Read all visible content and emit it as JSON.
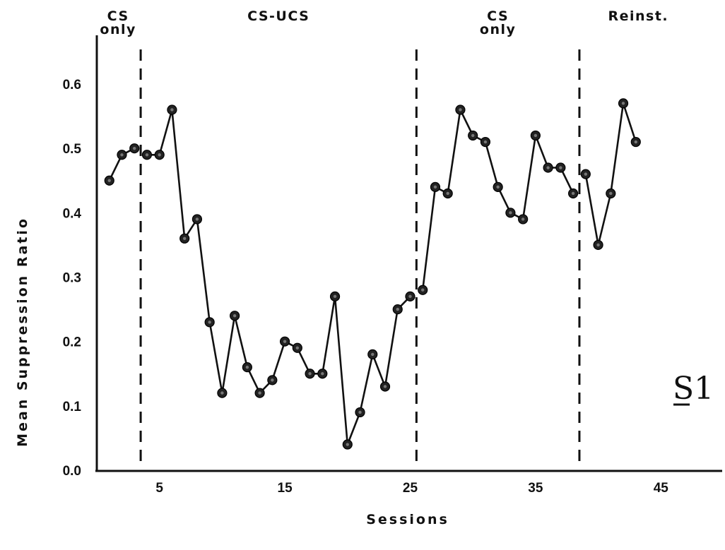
{
  "chart_data": {
    "type": "line",
    "xlabel": "Sessions",
    "ylabel": "Mean Suppression Ratio",
    "xlim": [
      0,
      50
    ],
    "ylim": [
      0,
      0.65
    ],
    "x_ticks": [
      5,
      15,
      25,
      35,
      45
    ],
    "x_tick_labels": [
      "5",
      "15",
      "25",
      "35",
      "45"
    ],
    "y_ticks": [
      0.0,
      0.1,
      0.2,
      0.3,
      0.4,
      0.5,
      0.6
    ],
    "y_tick_labels": [
      "0.0",
      "0.1",
      "0.2",
      "0.3",
      "0.4",
      "0.5",
      "0.6"
    ],
    "phase_boundaries": [
      3.5,
      25.5,
      38.5
    ],
    "phases": [
      {
        "label_lines": [
          "CS",
          "only"
        ],
        "center": 1.7
      },
      {
        "label_lines": [
          "CS-UCS"
        ],
        "center": 14.5
      },
      {
        "label_lines": [
          "CS",
          "only"
        ],
        "center": 32.0
      },
      {
        "label_lines": [
          "Reinst."
        ],
        "center": 43.2
      }
    ],
    "annotation": "S1",
    "series": [
      {
        "x": [
          1,
          2,
          3
        ],
        "y": [
          0.45,
          0.49,
          0.5
        ]
      },
      {
        "x": [
          4,
          5,
          6,
          7,
          8,
          9,
          10,
          11,
          12,
          13,
          14,
          15,
          16,
          17,
          18,
          19,
          20,
          21,
          22,
          23,
          24,
          25
        ],
        "y": [
          0.49,
          0.49,
          0.56,
          0.36,
          0.39,
          0.23,
          0.12,
          0.24,
          0.16,
          0.12,
          0.14,
          0.2,
          0.19,
          0.15,
          0.15,
          0.27,
          0.04,
          0.09,
          0.18,
          0.13,
          0.25,
          0.27
        ]
      },
      {
        "x": [
          26,
          27,
          28,
          29,
          30,
          31,
          32,
          33,
          34,
          35,
          36,
          37,
          38
        ],
        "y": [
          0.28,
          0.44,
          0.43,
          0.56,
          0.52,
          0.51,
          0.44,
          0.4,
          0.39,
          0.52,
          0.47,
          0.47,
          0.43
        ]
      },
      {
        "x": [
          39,
          40,
          41,
          42,
          43
        ],
        "y": [
          0.46,
          0.35,
          0.43,
          0.57,
          0.51
        ]
      }
    ]
  }
}
